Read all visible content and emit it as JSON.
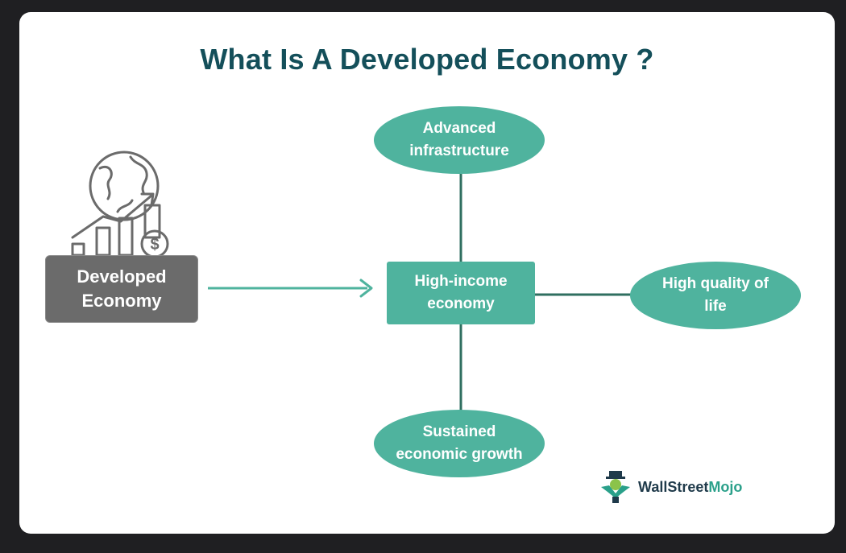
{
  "title": "What Is A Developed Economy ?",
  "source_box": {
    "label_line1": "Developed",
    "label_line2": "Economy"
  },
  "center_box": {
    "label_line1": "High-income",
    "label_line2": "economy"
  },
  "nodes": {
    "top": {
      "line1": "Advanced",
      "line2": "infrastructure"
    },
    "right": {
      "line1": "High quality of",
      "line2": "life"
    },
    "bottom": {
      "line1": "Sustained",
      "line2": "economic growth"
    }
  },
  "brand": {
    "part1": "WallStreet",
    "part2": "Mojo"
  },
  "colors": {
    "accent": "#4fb39e",
    "title": "#144f5a",
    "source_box": "#6b6b6b",
    "background": "#1f1f22",
    "card": "#ffffff"
  },
  "icons": [
    "globe-growth-icon",
    "arrow-right-icon",
    "wallstreetmojo-logo-icon"
  ]
}
